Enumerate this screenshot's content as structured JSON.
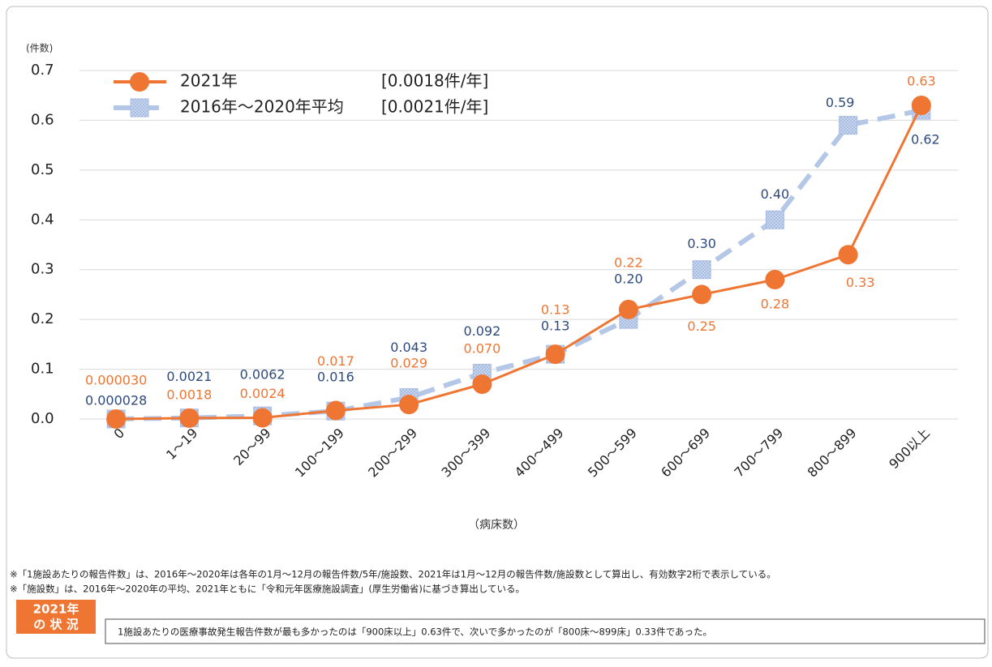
{
  "chart_data": {
    "type": "line",
    "y_label": "(件数)",
    "x_label": "（病床数）",
    "categories": [
      "0",
      "1～19",
      "20～99",
      "100～199",
      "200～299",
      "300～399",
      "400～499",
      "500～599",
      "600～699",
      "700～799",
      "800～899",
      "900以上"
    ],
    "series": [
      {
        "name": "2021年",
        "annotation": "[0.0018件/年]",
        "color": "#ef7533",
        "label_color": "#ef7533",
        "marker": "circle",
        "values": [
          3e-05,
          0.0018,
          0.0024,
          0.017,
          0.029,
          0.07,
          0.13,
          0.22,
          0.25,
          0.28,
          0.33,
          0.63
        ],
        "value_labels": [
          "0.000030",
          "0.0018",
          "0.0024",
          "0.017",
          "0.029",
          "0.070",
          "0.13",
          "0.22",
          "0.25",
          "0.28",
          "0.33",
          "0.63"
        ]
      },
      {
        "name": "2016年～2020年平均",
        "annotation": "[0.0021件/年]",
        "color": "#b4c7e7",
        "label_color": "#2e4a7d",
        "marker": "square",
        "dashed": true,
        "values": [
          2.8e-05,
          0.0021,
          0.0062,
          0.016,
          0.043,
          0.092,
          0.13,
          0.2,
          0.3,
          0.4,
          0.59,
          0.62
        ],
        "value_labels": [
          "0.000028",
          "0.0021",
          "0.0062",
          "0.016",
          "0.043",
          "0.092",
          "0.13",
          "0.20",
          "0.30",
          "0.40",
          "0.59",
          "0.62"
        ]
      }
    ],
    "ylim": [
      0,
      0.7
    ],
    "yticks": [
      {
        "value": 0,
        "label": "0.0"
      },
      0.1,
      0.2,
      0.3,
      0.4,
      0.5,
      0.6,
      0.7
    ],
    "grid": true,
    "legend": "top-left"
  },
  "notes": [
    "※「1施設あたりの報告件数」は、2016年～2020年は各年の1月～12月の報告件数/5年/施設数、2021年は1月～12月の報告件数/施設数として算出し、有効数字2桁で表示している。",
    "※「施設数」は、2016年～2020年の平均、2021年ともに「令和元年医療施設調査」(厚生労働省)に基づき算出している。"
  ],
  "summary": {
    "badge": [
      "2021年",
      "の 状 況"
    ],
    "text": "1施設あたりの医療事故発生報告件数が最も多かったのは「900床以上」0.63件で、次いで多かったのが「800床～899床」0.33件であった。"
  }
}
